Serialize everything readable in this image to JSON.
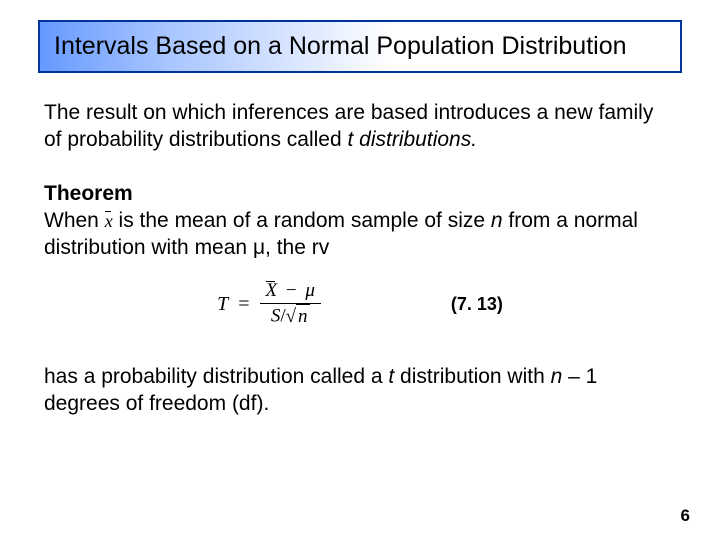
{
  "title": "Intervals Based on a Normal Population Distribution",
  "para1_a": "The result on which inferences are based introduces a new family of probability distributions called ",
  "para1_b": "t distributions.",
  "theorem_label": "Theorem",
  "theorem_a": "When ",
  "theorem_b": " is the mean of a random sample of size ",
  "theorem_c": "n",
  "theorem_d": " from a normal distribution with mean ",
  "theorem_mu": "μ",
  "theorem_e": ", the rv",
  "formula": {
    "T": "T",
    "eq": "=",
    "Xbar": "X",
    "minus": "−",
    "mu": "μ",
    "S": "S",
    "slash": "/",
    "n": "n"
  },
  "eq_label": "(7. 13)",
  "para3_a": "has a probability distribution called a ",
  "para3_b": "t ",
  "para3_c": "distribution with ",
  "para3_d": "n ",
  "para3_e": "– 1 degrees of freedom (df).",
  "page_number": "6",
  "colors": {
    "border": "#003399",
    "gradient_start": "#6699ff",
    "background": "#ffffff",
    "text": "#000000"
  }
}
